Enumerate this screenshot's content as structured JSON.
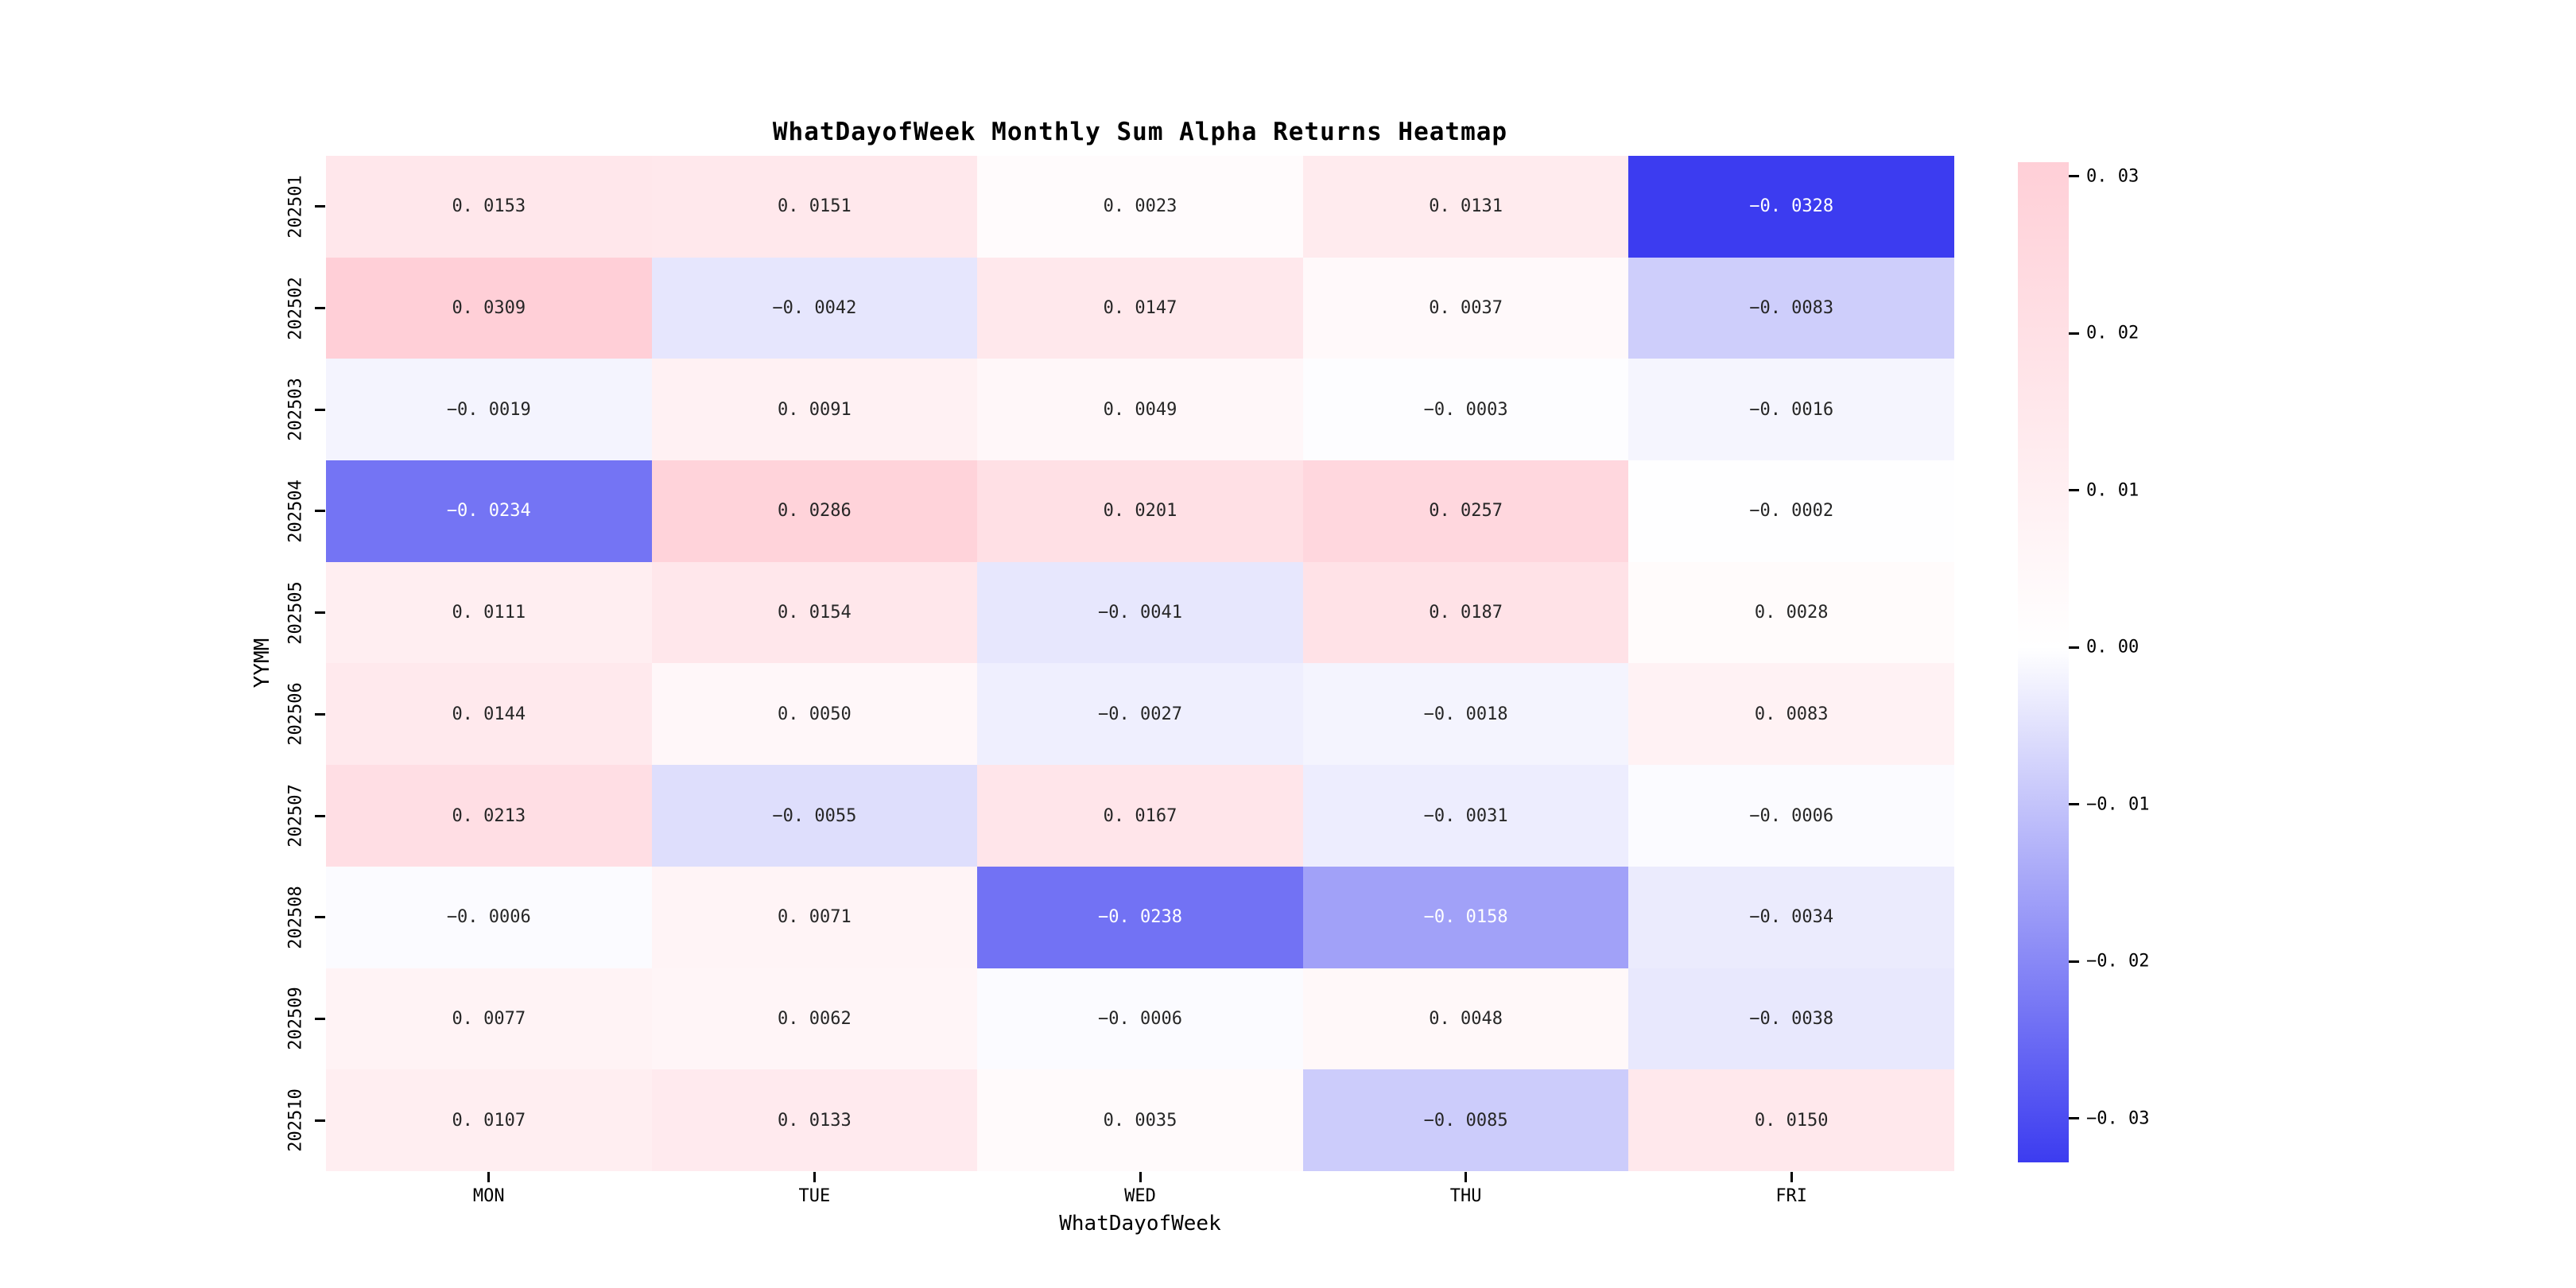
{
  "title": "WhatDayofWeek Monthly Sum Alpha Returns Heatmap",
  "chart_data": {
    "type": "heatmap",
    "title": "WhatDayofWeek Monthly Sum Alpha Returns Heatmap",
    "xlabel": "WhatDayofWeek",
    "ylabel": "YYMM",
    "columns": [
      "MON",
      "TUE",
      "WED",
      "THU",
      "FRI"
    ],
    "rows": [
      "202501",
      "202502",
      "202503",
      "202504",
      "202505",
      "202506",
      "202507",
      "202508",
      "202509",
      "202510"
    ],
    "values": [
      [
        0.0153,
        0.0151,
        0.0023,
        0.0131,
        -0.0328
      ],
      [
        0.0309,
        -0.0042,
        0.0147,
        0.0037,
        -0.0083
      ],
      [
        -0.0019,
        0.0091,
        0.0049,
        -0.0003,
        -0.0016
      ],
      [
        -0.0234,
        0.0286,
        0.0201,
        0.0257,
        -0.0002
      ],
      [
        0.0111,
        0.0154,
        -0.0041,
        0.0187,
        0.0028
      ],
      [
        0.0144,
        0.005,
        -0.0027,
        -0.0018,
        0.0083
      ],
      [
        0.0213,
        -0.0055,
        0.0167,
        -0.0031,
        -0.0006
      ],
      [
        -0.0006,
        0.0071,
        -0.0238,
        -0.0158,
        -0.0034
      ],
      [
        0.0077,
        0.0062,
        -0.0006,
        0.0048,
        -0.0038
      ],
      [
        0.0107,
        0.0133,
        0.0035,
        -0.0085,
        0.015
      ]
    ],
    "value_decimals": 4,
    "colorbar_ticks": [
      0.03,
      0.02,
      0.01,
      0.0,
      -0.01,
      -0.02,
      -0.03
    ],
    "colorbar_tick_decimals": 2,
    "vmin": -0.0328,
    "vmax": 0.0309,
    "center": 0,
    "legend_position": "right",
    "grid": false,
    "colors": {
      "negative_end": "#3c3cf0",
      "center": "#ffffff",
      "positive_end": "#ffccd5",
      "annotation_dark": "#262626",
      "annotation_light": "#ffffff",
      "tick_color": "#000000",
      "background": "#ffffff"
    }
  }
}
